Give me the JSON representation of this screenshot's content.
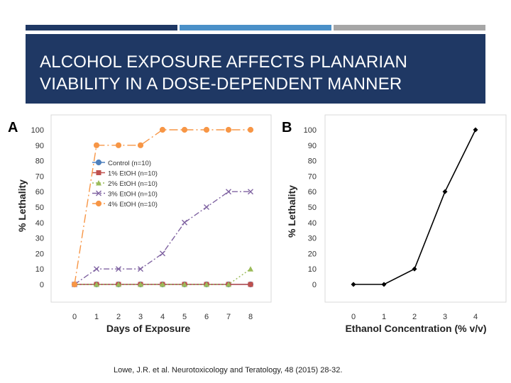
{
  "slide": {
    "title": "ALCOHOL EXPOSURE AFFECTS PLANARIAN\nVIABILITY IN A DOSE-DEPENDENT MANNER",
    "citation": "Lowe, J.R. et al.  Neurotoxicology and Teratology, 48 (2015) 28-32.",
    "colors": {
      "band": "#1f3864",
      "accent": "#4a90c8",
      "gray": "#a6a6a6"
    }
  },
  "chart_data": [
    {
      "panel": "A",
      "type": "line",
      "xlabel": "Days of Exposure",
      "ylabel": "% Lethality",
      "x": [
        0,
        1,
        2,
        3,
        4,
        5,
        6,
        7,
        8
      ],
      "ylim": [
        0,
        100
      ],
      "yticks": [
        0,
        10,
        20,
        30,
        40,
        50,
        60,
        70,
        80,
        90,
        100
      ],
      "legend_position": "middle-left",
      "series": [
        {
          "name": "Control (n=10)",
          "color": "#4f81bd",
          "marker": "circle",
          "dash": "solid",
          "values": [
            0,
            0,
            0,
            0,
            0,
            0,
            0,
            0,
            0
          ]
        },
        {
          "name": "1% EtOH (n=10)",
          "color": "#c0504d",
          "marker": "square",
          "dash": "solid",
          "values": [
            0,
            0,
            0,
            0,
            0,
            0,
            0,
            0,
            0
          ]
        },
        {
          "name": "2% EtOH (n=10)",
          "color": "#9bbb59",
          "marker": "triangle",
          "dash": "dot",
          "values": [
            0,
            0,
            0,
            0,
            0,
            0,
            0,
            0,
            10
          ]
        },
        {
          "name": "3% EtOH (n=10)",
          "color": "#8064a2",
          "marker": "x",
          "dash": "dashdot",
          "values": [
            0,
            10,
            10,
            10,
            20,
            40,
            50,
            60,
            60
          ]
        },
        {
          "name": "4% EtOH (n=10)",
          "color": "#f79646",
          "marker": "circle",
          "dash": "longdash",
          "values": [
            0,
            90,
            90,
            90,
            100,
            100,
            100,
            100,
            100
          ]
        }
      ]
    },
    {
      "panel": "B",
      "type": "line",
      "xlabel": "Ethanol Concentration (% v/v)",
      "ylabel": "% Lethality",
      "x": [
        0,
        1,
        2,
        3,
        4
      ],
      "ylim": [
        0,
        100
      ],
      "yticks": [
        0,
        10,
        20,
        30,
        40,
        50,
        60,
        70,
        80,
        90,
        100
      ],
      "series": [
        {
          "name": "% Lethality",
          "color": "#000000",
          "marker": "diamond",
          "dash": "solid",
          "values": [
            0,
            0,
            10,
            60,
            100
          ]
        }
      ]
    }
  ]
}
